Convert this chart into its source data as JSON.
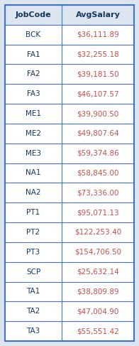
{
  "columns": [
    "JobCode",
    "AvgSalary"
  ],
  "rows": [
    [
      "BCK",
      "$36,111.89"
    ],
    [
      "FA1",
      "$32,255.18"
    ],
    [
      "FA2",
      "$39,181.50"
    ],
    [
      "FA3",
      "$46,107.57"
    ],
    [
      "ME1",
      "$39,900.50"
    ],
    [
      "ME2",
      "$49,807.64"
    ],
    [
      "ME3",
      "$59,374.86"
    ],
    [
      "NA1",
      "$58,845.00"
    ],
    [
      "NA2",
      "$73,336.00"
    ],
    [
      "PT1",
      "$95,071.13"
    ],
    [
      "PT2",
      "$122,253.40"
    ],
    [
      "PT3",
      "$154,706.50"
    ],
    [
      "SCP",
      "$25,632.14"
    ],
    [
      "TA1",
      "$38,809.89"
    ],
    [
      "TA2",
      "$47,004.90"
    ],
    [
      "TA3",
      "$55,551.42"
    ]
  ],
  "header_bg": "#dce6f1",
  "border_color": "#4472c4",
  "header_text_color": "#17375e",
  "col1_text_color": "#17375e",
  "col2_text_color": "#c0504d",
  "outer_bg": "#dce6f1",
  "cell_bg": "#ffffff",
  "font_size": 7.5,
  "header_font_size": 8.0,
  "col_split": 0.44
}
